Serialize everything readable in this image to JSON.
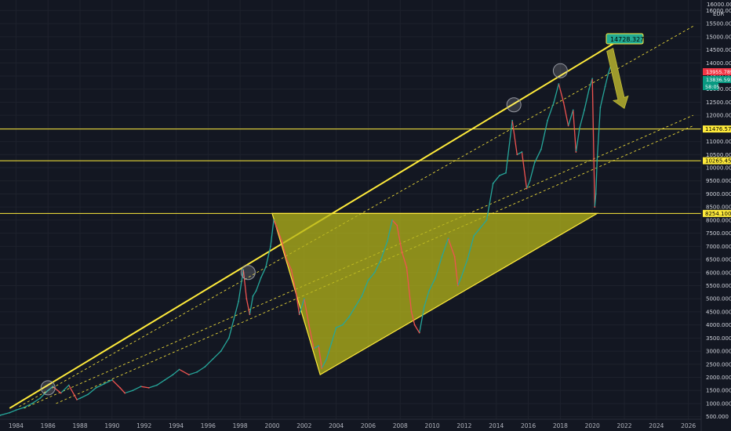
{
  "currency": "EUR",
  "corner_label": "16000.00",
  "colors": {
    "background": "#131722",
    "grid": "#1e222d",
    "up": "#26a69a",
    "down": "#ef5350",
    "annotation": "#ffeb3b",
    "triangle_fill": "#b5b51a",
    "price_red": "#f23645",
    "price_green": "#089981",
    "peak_label_bg": "#22ab94"
  },
  "icons": {
    "forecast_arrow": "down-right-arrow-icon",
    "peak_marker": "circle-marker-icon"
  },
  "price_badges": [
    "13955.789",
    "13836.593",
    "58:05"
  ],
  "chart_data": {
    "type": "line",
    "title": "",
    "xlabel": "",
    "ylabel": "",
    "xlim": [
      1983.0,
      2026.8
    ],
    "ylim": [
      400,
      16400
    ],
    "grid": true,
    "x_ticks": [
      "1984",
      "1986",
      "1988",
      "1990",
      "1992",
      "1994",
      "1996",
      "1998",
      "2000",
      "2002",
      "2004",
      "2006",
      "2008",
      "2010",
      "2012",
      "2014",
      "2016",
      "2018",
      "2020",
      "2022",
      "2024",
      "2026"
    ],
    "y_ticks": [
      "16000.000",
      "15500.000",
      "15000.000",
      "14500.000",
      "14000.000",
      "13500.000",
      "13000.000",
      "12500.000",
      "12000.000",
      "11500.000",
      "11000.000",
      "10500.000",
      "10000.000",
      "9500.000",
      "9000.000",
      "8500.000",
      "8000.000",
      "7500.000",
      "7000.000",
      "6500.000",
      "6000.000",
      "5500.000",
      "5000.000",
      "4500.000",
      "4000.000",
      "3500.000",
      "3000.000",
      "2500.000",
      "2000.000",
      "1500.000",
      "1000.000",
      "500.000"
    ],
    "series": [
      {
        "x": [
          1983.0,
          1983.6,
          1984.0,
          1984.5,
          1985.0,
          1985.5,
          1986.0,
          1986.3,
          1986.8,
          1987.3,
          1987.8,
          1988.0,
          1988.5,
          1989.0,
          1989.5,
          1990.0,
          1990.5,
          1990.8,
          1991.3,
          1991.8,
          1992.3,
          1992.8,
          1993.3,
          1993.8,
          1994.2,
          1994.8,
          1995.3,
          1995.8,
          1996.3,
          1996.8,
          1997.3,
          1997.6,
          1997.9,
          1998.2,
          1998.4,
          1998.6,
          1998.8,
          1999.0,
          1999.3,
          1999.6,
          1999.9,
          2000.1,
          2000.3,
          2000.6,
          2000.9,
          2001.2,
          2001.5,
          2001.7,
          2002.0,
          2002.3,
          2002.6,
          2002.9,
          2003.1,
          2003.4,
          2003.7,
          2004.0,
          2004.4,
          2004.8,
          2005.2,
          2005.6,
          2006.0,
          2006.4,
          2006.8,
          2007.2,
          2007.5,
          2007.8,
          2008.1,
          2008.4,
          2008.7,
          2008.9,
          2009.2,
          2009.5,
          2009.8,
          2010.2,
          2010.6,
          2011.0,
          2011.4,
          2011.6,
          2011.8,
          2012.2,
          2012.6,
          2013.0,
          2013.4,
          2013.8,
          2014.2,
          2014.6,
          2015.0,
          2015.3,
          2015.6,
          2015.9,
          2016.1,
          2016.4,
          2016.8,
          2017.2,
          2017.6,
          2017.9,
          2018.2,
          2018.5,
          2018.8,
          2018.98,
          2019.2,
          2019.5,
          2019.8,
          2020.0,
          2020.15,
          2020.22,
          2020.3,
          2020.5,
          2020.8,
          2021.0,
          2021.2
        ],
        "y": [
          550,
          650,
          750,
          850,
          1000,
          1200,
          1500,
          1650,
          1400,
          1700,
          1150,
          1200,
          1350,
          1600,
          1750,
          1900,
          1600,
          1400,
          1500,
          1650,
          1600,
          1700,
          1900,
          2100,
          2300,
          2100,
          2200,
          2400,
          2700,
          3000,
          3500,
          4200,
          4900,
          6100,
          5000,
          4400,
          5100,
          5300,
          5800,
          6200,
          7000,
          8000,
          7700,
          7200,
          6500,
          6100,
          5200,
          4400,
          5000,
          4000,
          3100,
          3200,
          2350,
          2700,
          3300,
          3900,
          4000,
          4300,
          4700,
          5100,
          5700,
          6000,
          6500,
          7200,
          8000,
          7800,
          6800,
          6200,
          4500,
          4000,
          3700,
          4700,
          5300,
          5800,
          6600,
          7300,
          6600,
          5500,
          5800,
          6500,
          7400,
          7700,
          8000,
          9400,
          9700,
          9800,
          11800,
          10500,
          10600,
          9200,
          9500,
          10200,
          10700,
          11800,
          12500,
          13200,
          12500,
          11600,
          12200,
          10600,
          11500,
          12200,
          13000,
          13400,
          8500,
          9000,
          10300,
          12300,
          13100,
          13600,
          14000
        ]
      }
    ],
    "levels": [
      {
        "value": "11476.574",
        "y": 11476.574
      },
      {
        "value": "10265.456",
        "y": 10265.456
      },
      {
        "value": "8254.100",
        "y": 8254.1
      }
    ],
    "annotations": {
      "peak_label": "14728.327"
    }
  }
}
